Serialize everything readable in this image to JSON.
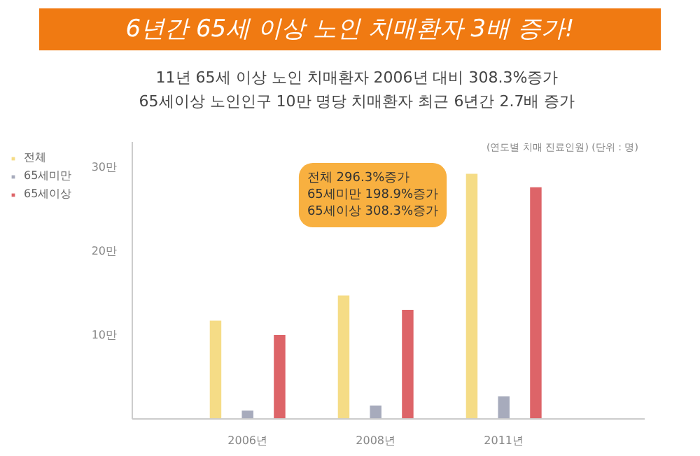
{
  "chart_data": {
    "type": "bar",
    "title": "6년간 65세 이상 노인 치매환자 3배 증가!",
    "subtitle": "11년 65세 이상 노인 치매환자 2006년 대비 308.3%증가\n65세이상 노인인구 10만 명당 치매환자 최근 6년간 2.7배 증가",
    "categories": [
      "2006년",
      "2008년",
      "2011년"
    ],
    "series": [
      {
        "name": "전체",
        "color": "#f5dc86",
        "values": [
          11.7,
          14.7,
          29.2
        ]
      },
      {
        "name": "65세미만",
        "color": "#a7abbc",
        "values": [
          1.0,
          1.6,
          2.7
        ]
      },
      {
        "name": "65세이상",
        "color": "#dd6468",
        "values": [
          10.0,
          13.0,
          27.6
        ]
      }
    ],
    "ylim": [
      0,
      33
    ],
    "yticks": [
      {
        "value": 10,
        "label": "10만"
      },
      {
        "value": 20,
        "label": "20만"
      },
      {
        "value": 30,
        "label": "30만"
      }
    ],
    "legend": "top left",
    "grid": false,
    "annotations": [
      "(연도별 치매 진료인원) (단위 : 명)",
      "전체 296.3%증가\n65세미만 198.9%증가\n65세이상 308.3%증가"
    ]
  }
}
